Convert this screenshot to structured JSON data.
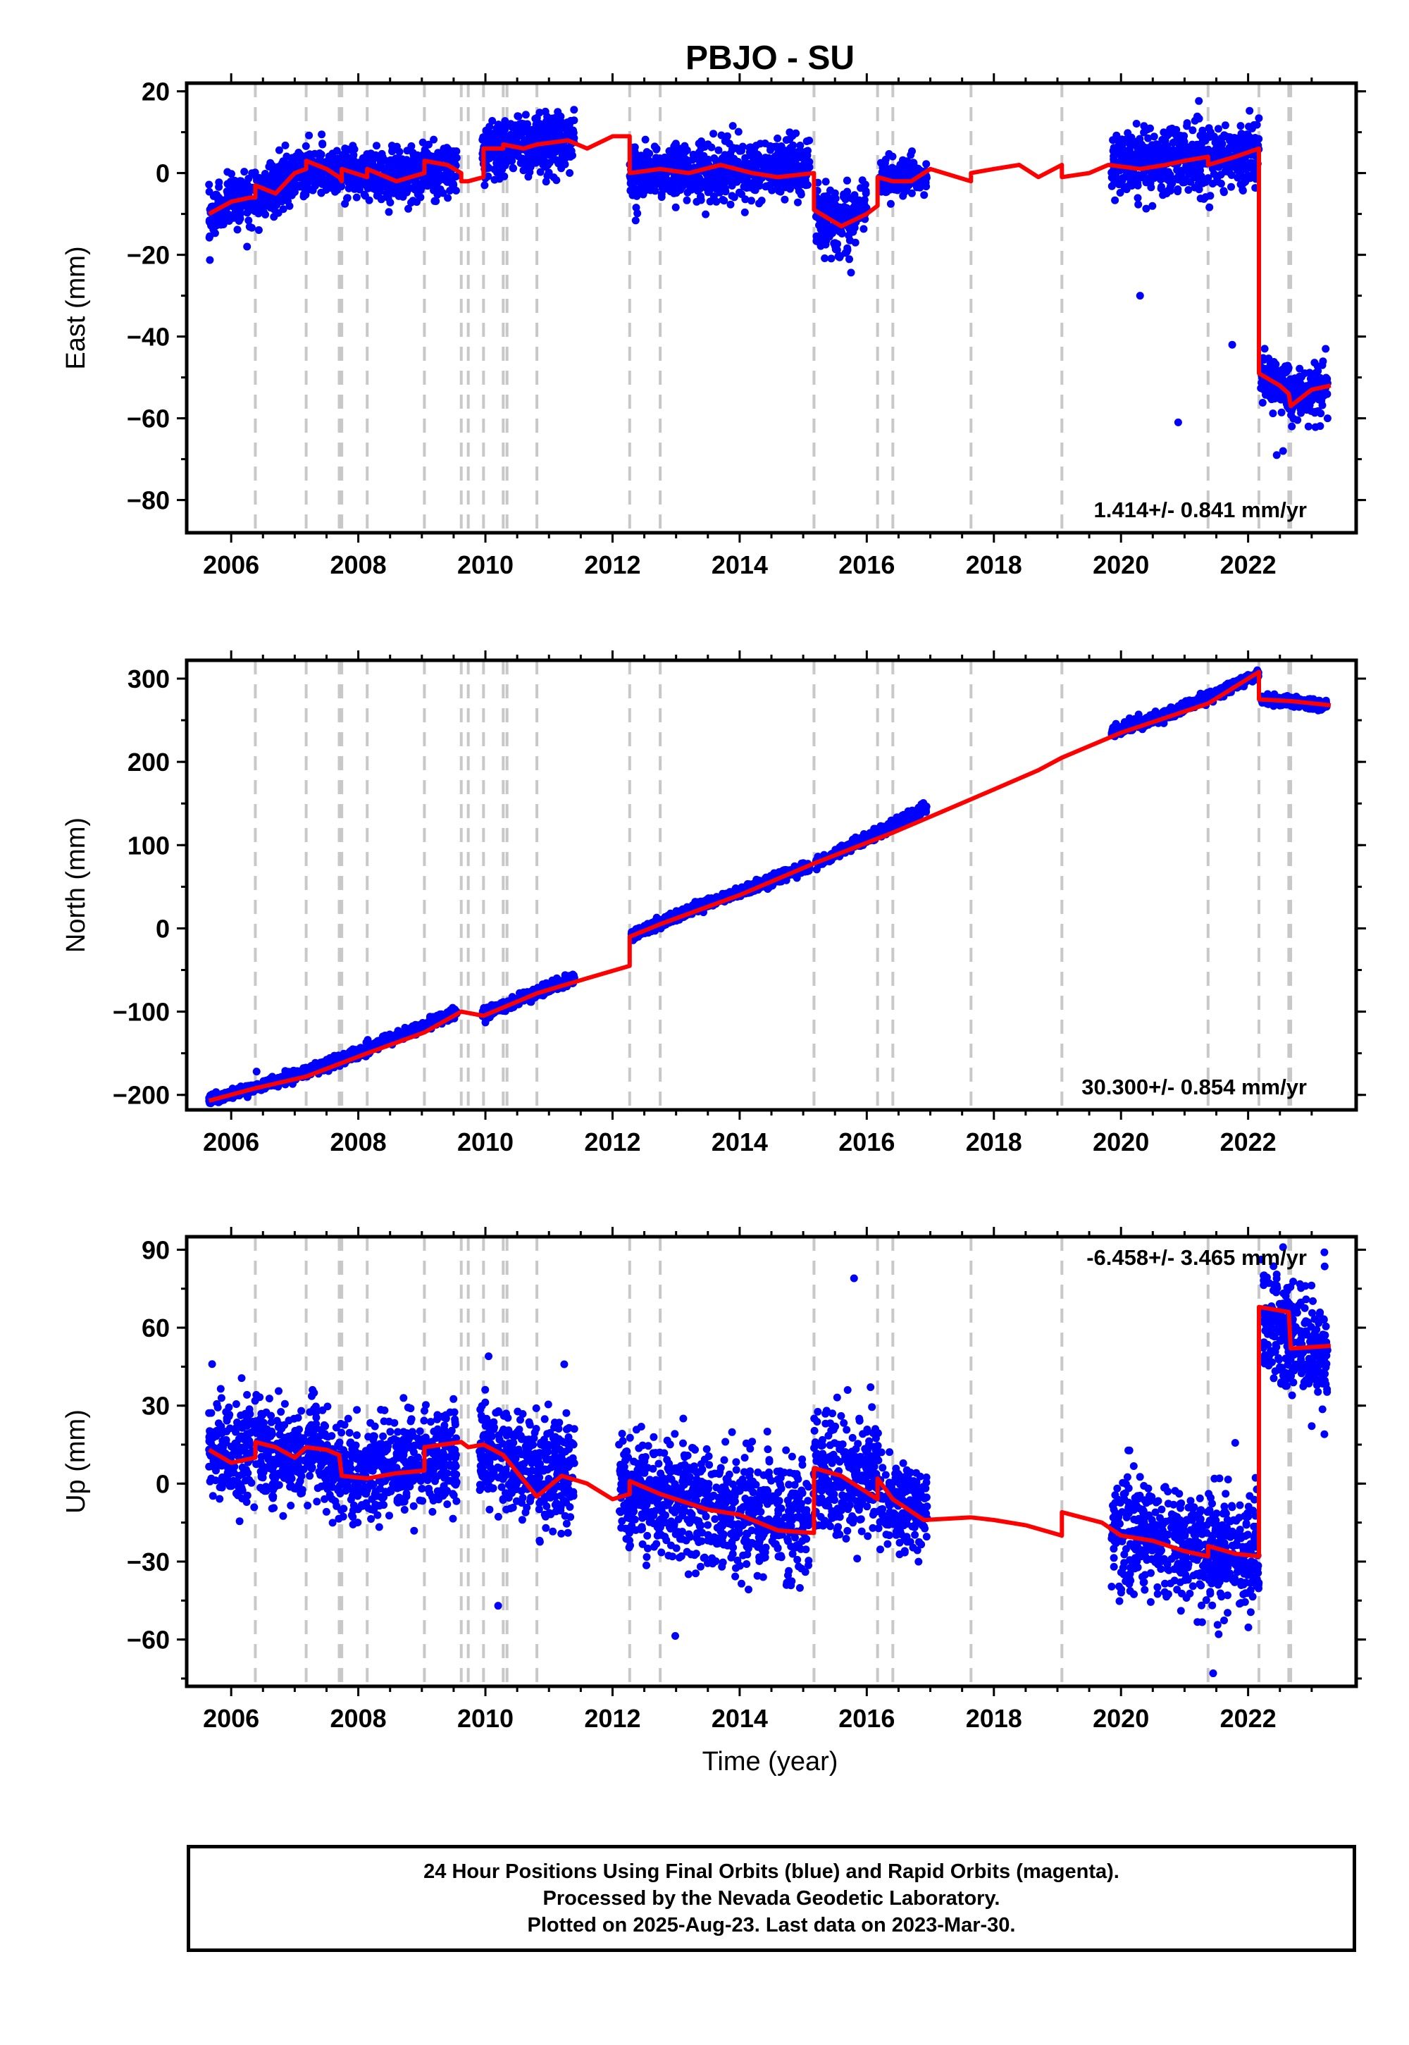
{
  "title": "PBJO - SU",
  "x_axis_label": "Time (year)",
  "caption": [
    "24 Hour Positions Using Final Orbits (blue) and Rapid Orbits (magenta).",
    "Processed by the Nevada Geodetic Laboratory.",
    "Plotted on 2025-Aug-23. Last data on 2023-Mar-30."
  ],
  "colors": {
    "data": "#0000ff",
    "model": "#ff0000",
    "event_lines": "#c8c8c8"
  },
  "chart_data": [
    {
      "type": "scatter",
      "ylabel": "East (mm)",
      "rate_text": "1.414+/- 0.841 mm/yr",
      "xlim": [
        2005.3,
        2023.7
      ],
      "ylim": [
        -88,
        22
      ],
      "xticks": [
        2006,
        2008,
        2010,
        2012,
        2014,
        2016,
        2018,
        2020,
        2022
      ],
      "yticks": [
        -80,
        -60,
        -40,
        -20,
        0,
        20
      ],
      "event_lines": [
        2006.38,
        2007.18,
        2007.7,
        2007.74,
        2008.14,
        2009.04,
        2009.62,
        2009.73,
        2009.97,
        2010.28,
        2010.34,
        2010.81,
        2012.27,
        2012.75,
        2015.17,
        2016.17,
        2016.41,
        2017.64,
        2019.07,
        2021.37,
        2022.17,
        2022.64,
        2022.67
      ],
      "data_segments": [
        {
          "x0": 2005.65,
          "x1": 2006.95,
          "center": [
            [
              2005.65,
              -11
            ],
            [
              2006.0,
              -7
            ],
            [
              2006.5,
              -5
            ],
            [
              2006.95,
              -1
            ]
          ],
          "sd": 3
        },
        {
          "x0": 2006.95,
          "x1": 2009.55,
          "center": [
            [
              2006.95,
              0
            ],
            [
              2007.5,
              0
            ],
            [
              2008.5,
              -1
            ],
            [
              2009.55,
              2
            ]
          ],
          "sd": 3
        },
        {
          "x0": 2009.95,
          "x1": 2011.4,
          "center": [
            [
              2009.95,
              5
            ],
            [
              2011.4,
              8
            ]
          ],
          "sd": 3.5
        },
        {
          "x0": 2012.27,
          "x1": 2015.1,
          "center": [
            [
              2012.27,
              0
            ],
            [
              2015.1,
              1
            ]
          ],
          "sd": 3.5
        },
        {
          "x0": 2015.2,
          "x1": 2016.0,
          "center": [
            [
              2015.2,
              -9
            ],
            [
              2015.6,
              -13
            ],
            [
              2016.0,
              -8
            ]
          ],
          "sd": 4
        },
        {
          "x0": 2016.2,
          "x1": 2016.95,
          "center": [
            [
              2016.2,
              -1
            ],
            [
              2016.95,
              0
            ]
          ],
          "sd": 2
        },
        {
          "x0": 2019.85,
          "x1": 2022.17,
          "center": [
            [
              2019.85,
              2
            ],
            [
              2021.0,
              3
            ],
            [
              2022.17,
              5
            ]
          ],
          "sd": 4
        },
        {
          "x0": 2022.2,
          "x1": 2023.25,
          "center": [
            [
              2022.2,
              -49
            ],
            [
              2022.7,
              -55
            ],
            [
              2023.25,
              -52
            ]
          ],
          "sd": 3
        }
      ],
      "data_outliers": [
        [
          2006.25,
          -18
        ],
        [
          2020.3,
          -30
        ],
        [
          2020.9,
          -61
        ],
        [
          2021.75,
          -42
        ],
        [
          2022.45,
          -69
        ],
        [
          2022.55,
          -68
        ],
        [
          2022.95,
          -62
        ],
        [
          2023.25,
          -60
        ],
        [
          2023.22,
          -43
        ]
      ],
      "model": [
        [
          2005.65,
          -10
        ],
        [
          2006.0,
          -7
        ],
        [
          2006.3,
          -6
        ],
        [
          2006.38,
          -6
        ],
        [
          2006.38,
          -3
        ],
        [
          2006.7,
          -5
        ],
        [
          2007.0,
          0
        ],
        [
          2007.18,
          1
        ],
        [
          2007.18,
          3
        ],
        [
          2007.5,
          1
        ],
        [
          2007.7,
          -1
        ],
        [
          2007.74,
          -2
        ],
        [
          2007.74,
          1
        ],
        [
          2008.14,
          -1
        ],
        [
          2008.14,
          1
        ],
        [
          2008.6,
          -2
        ],
        [
          2009.04,
          0
        ],
        [
          2009.04,
          3
        ],
        [
          2009.4,
          2
        ],
        [
          2009.62,
          0
        ],
        [
          2009.62,
          -2
        ],
        [
          2009.73,
          -2
        ],
        [
          2009.97,
          -1
        ],
        [
          2009.97,
          6
        ],
        [
          2010.28,
          6
        ],
        [
          2010.28,
          7
        ],
        [
          2010.6,
          6
        ],
        [
          2010.81,
          7
        ],
        [
          2011.3,
          8
        ],
        [
          2011.6,
          6
        ],
        [
          2012.0,
          9
        ],
        [
          2012.27,
          9
        ],
        [
          2012.27,
          0
        ],
        [
          2012.75,
          1
        ],
        [
          2013.2,
          0
        ],
        [
          2013.7,
          2
        ],
        [
          2014.2,
          0
        ],
        [
          2014.6,
          -1
        ],
        [
          2015.17,
          0
        ],
        [
          2015.17,
          -9
        ],
        [
          2015.6,
          -13
        ],
        [
          2016.0,
          -10
        ],
        [
          2016.17,
          -8
        ],
        [
          2016.17,
          -1
        ],
        [
          2016.41,
          -2
        ],
        [
          2016.7,
          -2
        ],
        [
          2017.0,
          1
        ],
        [
          2017.64,
          -2
        ],
        [
          2017.64,
          0
        ],
        [
          2018.0,
          1
        ],
        [
          2018.4,
          2
        ],
        [
          2018.7,
          -1
        ],
        [
          2019.07,
          2
        ],
        [
          2019.07,
          -1
        ],
        [
          2019.5,
          0
        ],
        [
          2019.8,
          2
        ],
        [
          2020.3,
          1
        ],
        [
          2020.7,
          2
        ],
        [
          2021.0,
          3
        ],
        [
          2021.37,
          4
        ],
        [
          2021.37,
          2
        ],
        [
          2021.8,
          4
        ],
        [
          2022.17,
          6
        ],
        [
          2022.17,
          -49
        ],
        [
          2022.5,
          -52
        ],
        [
          2022.64,
          -54
        ],
        [
          2022.67,
          -57
        ],
        [
          2023.0,
          -53
        ],
        [
          2023.3,
          -52
        ]
      ]
    },
    {
      "type": "scatter",
      "ylabel": "North (mm)",
      "rate_text": "30.300+/- 0.854 mm/yr",
      "xlim": [
        2005.3,
        2023.7
      ],
      "ylim": [
        -218,
        322
      ],
      "xticks": [
        2006,
        2008,
        2010,
        2012,
        2014,
        2016,
        2018,
        2020,
        2022
      ],
      "yticks": [
        -200,
        -100,
        0,
        100,
        200,
        300
      ],
      "event_lines": [
        2006.38,
        2007.18,
        2007.7,
        2007.74,
        2008.14,
        2009.04,
        2009.62,
        2009.73,
        2009.97,
        2010.28,
        2010.34,
        2010.81,
        2012.27,
        2012.75,
        2015.17,
        2016.17,
        2016.41,
        2017.64,
        2019.07,
        2021.37,
        2022.17,
        2022.64,
        2022.67
      ],
      "data_segments": [
        {
          "x0": 2005.65,
          "x1": 2009.55,
          "center": [
            [
              2005.65,
              -206
            ],
            [
              2007.0,
              -178
            ],
            [
              2008.0,
              -150
            ],
            [
              2009.55,
              -100
            ]
          ],
          "sd": 3
        },
        {
          "x0": 2009.95,
          "x1": 2011.4,
          "center": [
            [
              2009.95,
              -103
            ],
            [
              2011.4,
              -60
            ]
          ],
          "sd": 3
        },
        {
          "x0": 2012.27,
          "x1": 2015.1,
          "center": [
            [
              2012.27,
              -10
            ],
            [
              2013.0,
              15
            ],
            [
              2015.1,
              75
            ]
          ],
          "sd": 3
        },
        {
          "x0": 2015.2,
          "x1": 2016.95,
          "center": [
            [
              2015.2,
              78
            ],
            [
              2016.95,
              145
            ]
          ],
          "sd": 3
        },
        {
          "x0": 2019.85,
          "x1": 2022.17,
          "center": [
            [
              2019.85,
              235
            ],
            [
              2021.0,
              265
            ],
            [
              2022.17,
              305
            ]
          ],
          "sd": 3
        },
        {
          "x0": 2022.2,
          "x1": 2023.25,
          "center": [
            [
              2022.2,
              275
            ],
            [
              2023.25,
              268
            ]
          ],
          "sd": 3
        }
      ],
      "data_outliers": [
        [
          2006.4,
          -172
        ],
        [
          2010.0,
          -113
        ]
      ],
      "model": [
        [
          2005.65,
          -207
        ],
        [
          2006.38,
          -192
        ],
        [
          2007.18,
          -178
        ],
        [
          2008.14,
          -150
        ],
        [
          2009.04,
          -125
        ],
        [
          2009.62,
          -100
        ],
        [
          2009.97,
          -105
        ],
        [
          2010.81,
          -78
        ],
        [
          2011.6,
          -60
        ],
        [
          2012.27,
          -45
        ],
        [
          2012.27,
          -10
        ],
        [
          2012.75,
          5
        ],
        [
          2014.0,
          40
        ],
        [
          2015.17,
          78
        ],
        [
          2016.41,
          115
        ],
        [
          2017.64,
          155
        ],
        [
          2018.7,
          190
        ],
        [
          2019.07,
          205
        ],
        [
          2020.0,
          235
        ],
        [
          2021.37,
          270
        ],
        [
          2022.17,
          308
        ],
        [
          2022.17,
          275
        ],
        [
          2022.67,
          273
        ],
        [
          2023.3,
          268
        ]
      ]
    },
    {
      "type": "scatter",
      "ylabel": "Up (mm)",
      "rate_text": "-6.458+/- 3.465 mm/yr",
      "xlim": [
        2005.3,
        2023.7
      ],
      "ylim": [
        -78,
        95
      ],
      "xticks": [
        2006,
        2008,
        2010,
        2012,
        2014,
        2016,
        2018,
        2020,
        2022
      ],
      "yticks": [
        -60,
        -30,
        0,
        30,
        60,
        90
      ],
      "event_lines": [
        2006.38,
        2007.18,
        2007.7,
        2007.74,
        2008.14,
        2009.04,
        2009.62,
        2009.73,
        2009.97,
        2010.28,
        2010.34,
        2010.81,
        2012.27,
        2012.75,
        2015.17,
        2016.17,
        2016.41,
        2017.64,
        2019.07,
        2021.37,
        2022.17,
        2022.64,
        2022.67
      ],
      "data_segments": [
        {
          "x0": 2005.65,
          "x1": 2007.15,
          "center": [
            [
              2005.65,
              12
            ],
            [
              2007.15,
              12
            ]
          ],
          "sd": 9
        },
        {
          "x0": 2007.2,
          "x1": 2009.55,
          "center": [
            [
              2007.2,
              12
            ],
            [
              2008.0,
              3
            ],
            [
              2009.55,
              12
            ]
          ],
          "sd": 9
        },
        {
          "x0": 2009.9,
          "x1": 2011.4,
          "center": [
            [
              2009.9,
              12
            ],
            [
              2011.4,
              2
            ]
          ],
          "sd": 10
        },
        {
          "x0": 2012.1,
          "x1": 2015.1,
          "center": [
            [
              2012.1,
              -2
            ],
            [
              2015.1,
              -15
            ]
          ],
          "sd": 11
        },
        {
          "x0": 2015.15,
          "x1": 2016.2,
          "center": [
            [
              2015.15,
              3
            ],
            [
              2016.2,
              3
            ]
          ],
          "sd": 12
        },
        {
          "x0": 2016.2,
          "x1": 2016.95,
          "center": [
            [
              2016.2,
              -8
            ],
            [
              2016.95,
              -10
            ]
          ],
          "sd": 8
        },
        {
          "x0": 2019.85,
          "x1": 2022.17,
          "center": [
            [
              2019.85,
              -18
            ],
            [
              2022.17,
              -28
            ]
          ],
          "sd": 11
        },
        {
          "x0": 2022.2,
          "x1": 2023.25,
          "center": [
            [
              2022.2,
              62
            ],
            [
              2023.25,
              50
            ]
          ],
          "sd": 10
        }
      ],
      "data_outliers": [
        [
          2005.7,
          46
        ],
        [
          2010.05,
          49
        ],
        [
          2010.2,
          -47
        ],
        [
          2015.8,
          79
        ],
        [
          2021.45,
          -73
        ],
        [
          2022.55,
          91
        ],
        [
          2023.2,
          89
        ],
        [
          2023.2,
          19
        ]
      ],
      "model": [
        [
          2005.65,
          13
        ],
        [
          2006.0,
          8
        ],
        [
          2006.38,
          10
        ],
        [
          2006.38,
          16
        ],
        [
          2006.7,
          14
        ],
        [
          2007.0,
          10
        ],
        [
          2007.18,
          14
        ],
        [
          2007.5,
          13
        ],
        [
          2007.7,
          11
        ],
        [
          2007.74,
          3
        ],
        [
          2008.14,
          2
        ],
        [
          2008.6,
          4
        ],
        [
          2009.04,
          5
        ],
        [
          2009.04,
          14
        ],
        [
          2009.62,
          16
        ],
        [
          2009.73,
          14
        ],
        [
          2009.97,
          15
        ],
        [
          2010.28,
          11
        ],
        [
          2010.81,
          -5
        ],
        [
          2011.2,
          3
        ],
        [
          2011.6,
          0
        ],
        [
          2012.0,
          -6
        ],
        [
          2012.27,
          -4
        ],
        [
          2012.27,
          1
        ],
        [
          2012.75,
          -4
        ],
        [
          2013.5,
          -10
        ],
        [
          2014.0,
          -12
        ],
        [
          2014.6,
          -18
        ],
        [
          2015.17,
          -19
        ],
        [
          2015.17,
          6
        ],
        [
          2015.6,
          3
        ],
        [
          2016.17,
          -6
        ],
        [
          2016.17,
          2
        ],
        [
          2016.41,
          -6
        ],
        [
          2016.9,
          -14
        ],
        [
          2017.64,
          -13
        ],
        [
          2018.0,
          -14
        ],
        [
          2018.5,
          -16
        ],
        [
          2019.07,
          -20
        ],
        [
          2019.07,
          -11
        ],
        [
          2019.7,
          -15
        ],
        [
          2020.0,
          -20
        ],
        [
          2020.5,
          -22
        ],
        [
          2021.0,
          -26
        ],
        [
          2021.37,
          -28
        ],
        [
          2021.37,
          -24
        ],
        [
          2021.8,
          -27
        ],
        [
          2022.17,
          -28
        ],
        [
          2022.17,
          68
        ],
        [
          2022.64,
          66
        ],
        [
          2022.67,
          52
        ],
        [
          2023.3,
          53
        ]
      ]
    }
  ]
}
